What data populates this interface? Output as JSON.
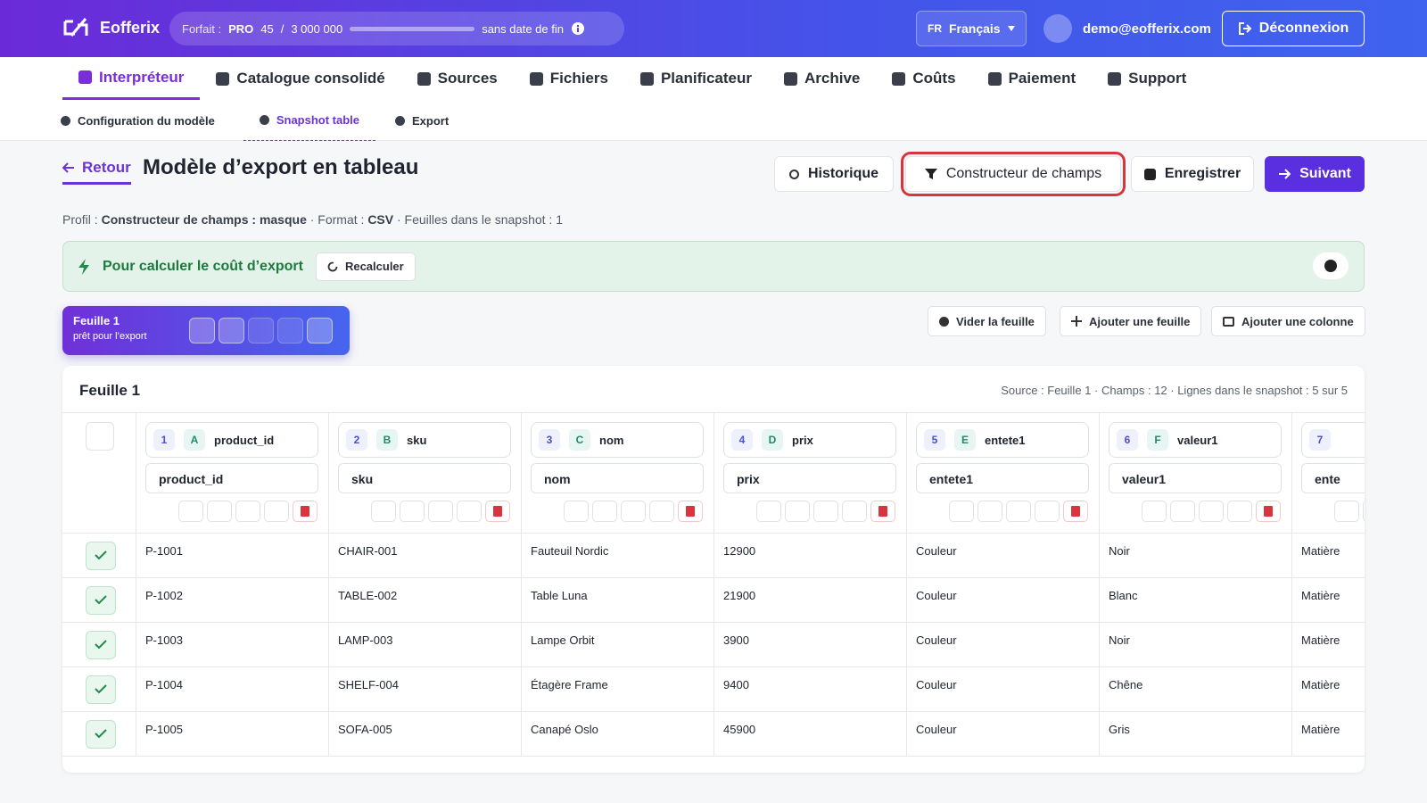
{
  "header": {
    "brand": "Eofferix",
    "plan_label": "Forfait :",
    "plan": "PRO",
    "usage": "45",
    "usage_sep": "/",
    "usage_limit": "3 000 000",
    "plan_term": "sans date de fin",
    "lang_code": "FR",
    "lang": "Français",
    "user": "demo@eofferix.com",
    "logout": "Déconnexion"
  },
  "nav": {
    "tabs": [
      "Interpréteur",
      "Catalogue consolidé",
      "Sources",
      "Fichiers",
      "Planificateur",
      "Archive",
      "Coûts",
      "Paiement",
      "Support"
    ]
  },
  "subnav": {
    "tabs": [
      "Configuration du modèle",
      "Snapshot table",
      "Export"
    ]
  },
  "page": {
    "back": "Retour",
    "title": "Modèle d’export en tableau",
    "actions": [
      "Historique",
      "Constructeur de champs",
      "Enregistrer",
      "Suivant"
    ]
  },
  "profile": {
    "label": "Profil :",
    "name": "Constructeur de champs : masque",
    "format_label": "· Format :",
    "format": "CSV",
    "sheets": "· Feuilles dans le snapshot : 1"
  },
  "banner": {
    "text": "Pour calculer le coût d’export",
    "button": "Recalculer"
  },
  "sheet_tab": {
    "name": "Feuille 1",
    "status": "prêt pour l’export"
  },
  "sheet_actions": [
    "Vider la feuille",
    "Ajouter une feuille",
    "Ajouter une colonne"
  ],
  "table": {
    "title": "Feuille 1",
    "meta": "Source : Feuille 1 · Champs : 12 · Lignes dans le snapshot : 5 sur 5",
    "columns": [
      {
        "index": "1",
        "letter": "A",
        "field": "product_id",
        "label": "product_id"
      },
      {
        "index": "2",
        "letter": "B",
        "field": "sku",
        "label": "sku"
      },
      {
        "index": "3",
        "letter": "C",
        "field": "nom",
        "label": "nom"
      },
      {
        "index": "4",
        "letter": "D",
        "field": "prix",
        "label": "prix"
      },
      {
        "index": "5",
        "letter": "E",
        "field": "entete1",
        "label": "entete1"
      },
      {
        "index": "6",
        "letter": "F",
        "field": "valeur1",
        "label": "valeur1"
      },
      {
        "index": "7",
        "label": "ente"
      }
    ],
    "rows": [
      [
        "P-1001",
        "CHAIR-001",
        "Fauteuil Nordic",
        12900,
        "Couleur",
        "Noir",
        "Matière"
      ],
      [
        "P-1002",
        "TABLE-002",
        "Table Luna",
        21900,
        "Couleur",
        "Blanc",
        "Matière"
      ],
      [
        "P-1003",
        "LAMP-003",
        "Lampe Orbit",
        3900,
        "Couleur",
        "Noir",
        "Matière"
      ],
      [
        "P-1004",
        "SHELF-004",
        "Étagère Frame",
        9400,
        "Couleur",
        "Chêne",
        "Matière"
      ],
      [
        "P-1005",
        "SOFA-005",
        "Canapé Oslo",
        45900,
        "Couleur",
        "Gris",
        "Matière"
      ]
    ]
  }
}
